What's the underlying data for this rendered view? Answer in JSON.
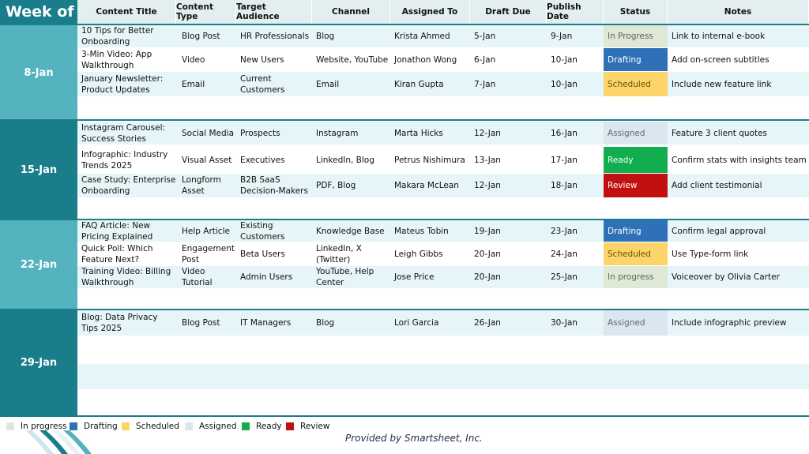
{
  "header": {
    "week_of": "Week of",
    "columns": [
      "Content Title",
      "Content Type",
      "Target Audience",
      "Channel",
      "Assigned To",
      "Draft Due",
      "Publish Date",
      "Status",
      "Notes"
    ]
  },
  "colors": {
    "teal_dark": "#197d8b",
    "teal_light": "#55b3bf",
    "row_tint": "#e6f5f7",
    "In Progress": "#dfe8d6",
    "In progress": "#dfe8d6",
    "Drafting": "#2f71b8",
    "Scheduled": "#fcd46a",
    "Assigned": "#dbe6f0",
    "Ready": "#12ad4f",
    "Review": "#c21010"
  },
  "weeks": [
    {
      "label": "8-Jan",
      "rows": [
        {
          "title": "10 Tips for Better Onboarding",
          "type": "Blog Post",
          "audience": "HR Professionals",
          "channel": "Blog",
          "assigned": "Krista Ahmed",
          "draft": "5-Jan",
          "publish": "9-Jan",
          "status": "In Progress",
          "notes": "Link to internal e-book"
        },
        {
          "title": "3-Min Video: App Walkthrough",
          "type": "Video",
          "audience": "New Users",
          "channel": "Website, YouTube",
          "assigned": "Jonathon Wong",
          "draft": "6-Jan",
          "publish": "10-Jan",
          "status": "Drafting",
          "notes": "Add on-screen subtitles"
        },
        {
          "title": "January Newsletter: Product Updates",
          "type": "Email",
          "audience": "Current Customers",
          "channel": "Email",
          "assigned": "Kiran Gupta",
          "draft": "7-Jan",
          "publish": "10-Jan",
          "status": "Scheduled",
          "notes": "Include new feature link"
        }
      ]
    },
    {
      "label": "15-Jan",
      "rows": [
        {
          "title": "Instagram Carousel: Success Stories",
          "type": "Social Media",
          "audience": "Prospects",
          "channel": "Instagram",
          "assigned": "Marta Hicks",
          "draft": "12-Jan",
          "publish": "16-Jan",
          "status": "Assigned",
          "notes": "Feature 3 client quotes"
        },
        {
          "title": "Infographic: Industry Trends 2025",
          "type": "Visual Asset",
          "audience": "Executives",
          "channel": "LinkedIn, Blog",
          "assigned": "Petrus Nishimura",
          "draft": "13-Jan",
          "publish": "17-Jan",
          "status": "Ready",
          "notes": "Confirm stats with insights team"
        },
        {
          "title": "Case Study: Enterprise Onboarding",
          "type": "Longform Asset",
          "audience": "B2B SaaS Decision-Makers",
          "channel": "PDF, Blog",
          "assigned": "Makara McLean",
          "draft": "12-Jan",
          "publish": "18-Jan",
          "status": "Review",
          "notes": "Add client testimonial"
        }
      ]
    },
    {
      "label": "22-Jan",
      "rows": [
        {
          "title": "FAQ Article: New Pricing Explained",
          "type": "Help Article",
          "audience": "Existing Customers",
          "channel": "Knowledge Base",
          "assigned": "Mateus Tobin",
          "draft": "19-Jan",
          "publish": "23-Jan",
          "status": "Drafting",
          "notes": "Confirm legal approval"
        },
        {
          "title": "Quick Poll: Which Feature Next?",
          "type": "Engagement Post",
          "audience": "Beta Users",
          "channel": "LinkedIn, X (Twitter)",
          "assigned": "Leigh Gibbs",
          "draft": "20-Jan",
          "publish": "24-Jan",
          "status": "Scheduled",
          "notes": "Use Type-form link"
        },
        {
          "title": "Training Video: Billing Walkthrough",
          "type": "Video Tutorial",
          "audience": "Admin Users",
          "channel": "YouTube, Help Center",
          "assigned": "Jose Price",
          "draft": "20-Jan",
          "publish": "25-Jan",
          "status": "In progress",
          "notes": "Voiceover by Olivia Carter"
        }
      ]
    },
    {
      "label": "29-Jan",
      "rows": [
        {
          "title": "Blog: Data Privacy Tips 2025",
          "type": "Blog Post",
          "audience": "IT Managers",
          "channel": "Blog",
          "assigned": "Lori Garcia",
          "draft": "26-Jan",
          "publish": "30-Jan",
          "status": "Assigned",
          "notes": "Include infographic preview"
        }
      ]
    }
  ],
  "legend": [
    "In progress",
    "Drafting",
    "Scheduled",
    "Assigned",
    "Ready",
    "Review"
  ],
  "footer": {
    "credit": "Provided by Smartsheet, Inc."
  }
}
